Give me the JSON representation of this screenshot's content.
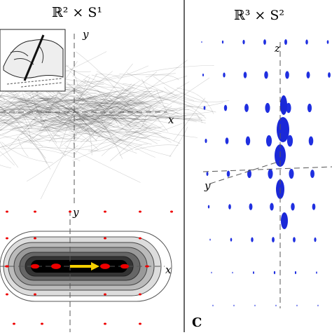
{
  "left_panel": {
    "title": "ℝ² × S¹",
    "top_plot": {
      "y_label": "y",
      "x_label": "x"
    },
    "bottom_plot": {
      "y_label": "y",
      "x_label": "x"
    }
  },
  "right_panel": {
    "title": "ℝ³ × S²",
    "z_label": "z",
    "y_label": "y",
    "panel_label": "C"
  }
}
